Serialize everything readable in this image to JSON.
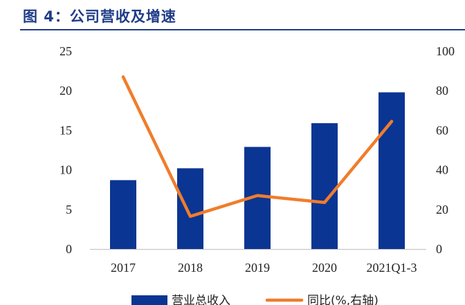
{
  "figure": {
    "title": "图 4：公司营收及增速"
  },
  "colors": {
    "title": "#1f3c88",
    "bar": "#0b3593",
    "line": "#f07d2b"
  },
  "chart_data": {
    "type": "bar",
    "categories": [
      "2017",
      "2018",
      "2019",
      "2020",
      "2021Q1-3"
    ],
    "series": [
      {
        "name": "营业总收入",
        "type": "bar",
        "axis": "left",
        "values": [
          8.7,
          10.2,
          12.9,
          15.9,
          19.8
        ]
      },
      {
        "name": "同比(%,右轴)",
        "type": "line",
        "axis": "right",
        "values": [
          87,
          16.5,
          27,
          23.5,
          64.5
        ]
      }
    ],
    "y_left": {
      "lim": [
        0,
        25
      ],
      "ticks": [
        "0",
        "5",
        "10",
        "15",
        "20",
        "25"
      ]
    },
    "y_right": {
      "lim": [
        0,
        100
      ],
      "ticks": [
        "0",
        "20",
        "40",
        "60",
        "80",
        "100"
      ]
    },
    "grid": false,
    "legend_position": "bottom"
  }
}
